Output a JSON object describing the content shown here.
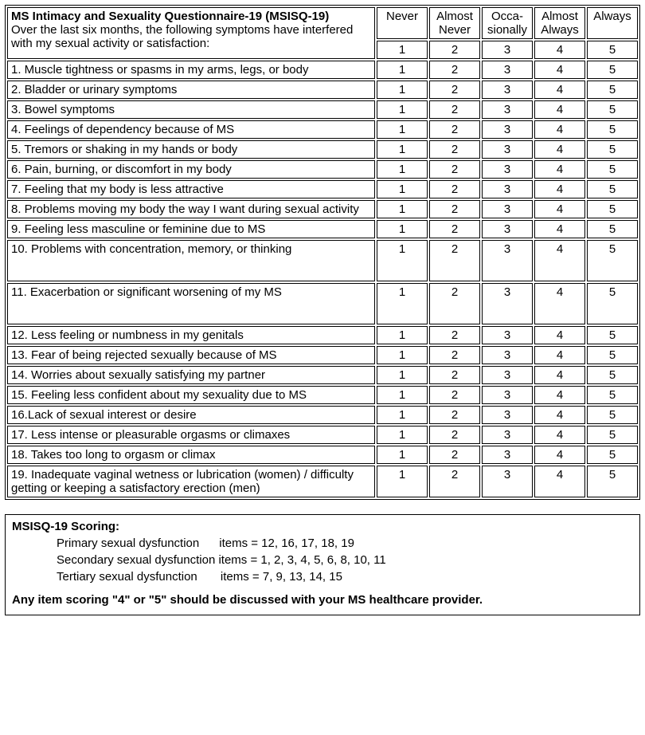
{
  "header": {
    "title": "MS Intimacy and Sexuality Questionnaire-19 (MSISQ-19)",
    "subtitle": "Over the last six months, the following symptoms have interfered with my sexual activity or satisfaction:"
  },
  "scale": {
    "labels": [
      "Never",
      "Almost Never",
      "Occa-\nsionally",
      "Almost Always",
      "Always"
    ],
    "values": [
      "1",
      "2",
      "3",
      "4",
      "5"
    ]
  },
  "items": [
    {
      "text": "1. Muscle tightness or spasms in my arms, legs, or body",
      "tall": false
    },
    {
      "text": "2. Bladder or urinary symptoms",
      "tall": false
    },
    {
      "text": "3. Bowel symptoms",
      "tall": false
    },
    {
      "text": "4. Feelings of dependency because of MS",
      "tall": false
    },
    {
      "text": "5. Tremors or shaking in my hands or body",
      "tall": false
    },
    {
      "text": "6. Pain, burning, or discomfort in my body",
      "tall": false
    },
    {
      "text": "7. Feeling that my body is less attractive",
      "tall": false
    },
    {
      "text": "8. Problems moving my body the way I want during sexual activity",
      "tall": false
    },
    {
      "text": "9. Feeling less masculine or feminine due to MS",
      "tall": false
    },
    {
      "text": "10. Problems with concentration, memory, or thinking",
      "tall": true
    },
    {
      "text": "11. Exacerbation or significant worsening of my MS",
      "tall": true
    },
    {
      "text": "12. Less feeling or numbness in my genitals",
      "tall": false
    },
    {
      "text": "13. Fear of being rejected sexually because of MS",
      "tall": false
    },
    {
      "text": "14. Worries about sexually satisfying my partner",
      "tall": false
    },
    {
      "text": "15. Feeling less confident about my sexuality due to MS",
      "tall": false
    },
    {
      "text": "16.Lack of sexual interest or desire",
      "tall": false
    },
    {
      "text": "17. Less intense or pleasurable orgasms or climaxes",
      "tall": false
    },
    {
      "text": "18. Takes too long to orgasm or climax",
      "tall": false
    },
    {
      "text": "19. Inadequate vaginal wetness or lubrication (women) / difficulty getting or keeping a satisfactory erection (men)",
      "tall": false
    }
  ],
  "scoring": {
    "title": "MSISQ-19 Scoring:",
    "rows": [
      "Primary sexual dysfunction      items = 12, 16, 17, 18, 19",
      "Secondary sexual dysfunction items = 1, 2, 3, 4, 5, 6, 8, 10, 11",
      "Tertiary sexual dysfunction       items = 7, 9, 13, 14, 15"
    ],
    "note": "Any item scoring \"4\" or \"5\" should be discussed with your MS healthcare provider."
  }
}
